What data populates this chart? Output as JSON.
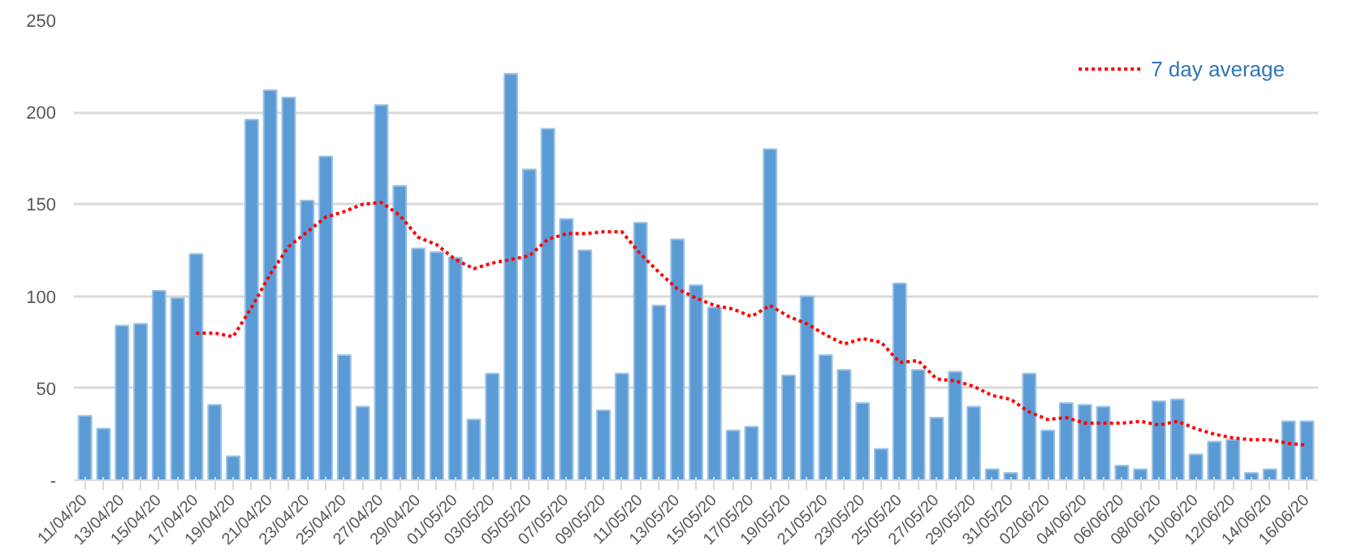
{
  "chart_data": {
    "type": "bar",
    "categories": [
      "11/04/20",
      null,
      "13/04/20",
      null,
      "15/04/20",
      null,
      "17/04/20",
      null,
      "19/04/20",
      null,
      "21/04/20",
      null,
      "23/04/20",
      null,
      "25/04/20",
      null,
      "27/04/20",
      null,
      "29/04/20",
      null,
      "01/05/20",
      null,
      "03/05/20",
      null,
      "05/05/20",
      null,
      "07/05/20",
      null,
      "09/05/20",
      null,
      "11/05/20",
      null,
      "13/05/20",
      null,
      "15/05/20",
      null,
      "17/05/20",
      null,
      "19/05/20",
      null,
      "21/05/20",
      null,
      "23/05/20",
      null,
      "25/05/20",
      null,
      "27/05/20",
      null,
      "29/05/20",
      null,
      "31/05/20",
      null,
      "02/06/20",
      null,
      "04/06/20",
      null,
      "06/06/20",
      null,
      "08/06/20",
      null,
      "10/06/20",
      null,
      "12/06/20",
      null,
      "14/06/20",
      null,
      "16/06/20"
    ],
    "series": [
      {
        "color": "#5b9bd5",
        "values": [
          35,
          28,
          84,
          85,
          103,
          99,
          123,
          41,
          13,
          196,
          212,
          208,
          152,
          176,
          68,
          40,
          204,
          160,
          126,
          124,
          121,
          33,
          58,
          221,
          169,
          191,
          142,
          125,
          38,
          58,
          140,
          95,
          131,
          106,
          94,
          27,
          29,
          180,
          57,
          100,
          68,
          60,
          42,
          17,
          107,
          60,
          34,
          59,
          40,
          6,
          4,
          58,
          27,
          42,
          41,
          40,
          8,
          6,
          43,
          44,
          14,
          21,
          22,
          4,
          6,
          32,
          32
        ]
      },
      {
        "type": "line",
        "name": "7 day average",
        "color": "#ff0000",
        "line_style": "dotted",
        "values": [
          null,
          null,
          null,
          null,
          null,
          null,
          80,
          80,
          78,
          94,
          112,
          127,
          135,
          143,
          146,
          150,
          151,
          144,
          132,
          128,
          120,
          115,
          118,
          120,
          122,
          131,
          134,
          134,
          135,
          135,
          123,
          113,
          104,
          99,
          95,
          93,
          89,
          95,
          89,
          85,
          79,
          74,
          77,
          75,
          64,
          65,
          55,
          54,
          51,
          46,
          44,
          37,
          33,
          34,
          31,
          31,
          31,
          32,
          30,
          32,
          28,
          25,
          23,
          22,
          22,
          20,
          19
        ]
      }
    ],
    "ylim": [
      0,
      250
    ],
    "yticks": [
      {
        "value": 0,
        "label": "-"
      },
      50,
      100,
      150,
      200,
      250
    ],
    "grid": "y",
    "legend": "top right"
  }
}
